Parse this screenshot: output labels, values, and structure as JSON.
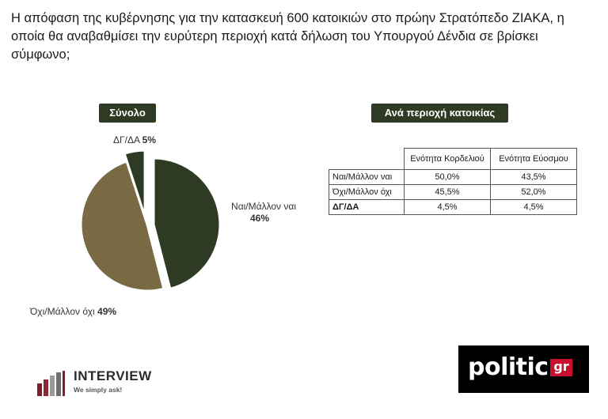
{
  "title": "Η απόφαση της κυβέρνησης για την κατασκευή 600 κατοικιών στο πρώην Στρατόπεδο ΖΙΑΚΑ, η οποία θα αναβαθμίσει την ευρύτερη περιοχή κατά δήλωση του Υπουργού Δένδια σε βρίσκει σύμφωνο;",
  "panels": {
    "total_label": "Σύνολο",
    "region_label": "Ανά περιοχή κατοικίας"
  },
  "pie_labels": {
    "dk": {
      "name": "ΔΓ/ΔΑ",
      "pct": "5%"
    },
    "yes": {
      "name": "Ναι/Μάλλον ναι",
      "pct": "46%"
    },
    "no": {
      "name": "Όχι/Μάλλον όχι",
      "pct": "49%"
    }
  },
  "chart_data": [
    {
      "type": "pie",
      "title": "Σύνολο",
      "categories": [
        "Ναι/Μάλλον ναι",
        "Όχι/Μάλλον όχι",
        "ΔΓ/ΔΑ"
      ],
      "values": [
        46,
        49,
        5
      ],
      "colors": [
        "#2f3a22",
        "#7a6a44",
        "#2f3a22"
      ]
    },
    {
      "type": "table",
      "title": "Ανά περιοχή κατοικίας",
      "columns": [
        "Ενότητα Κορδελιού",
        "Ενότητα Εύοσμου"
      ],
      "rows": [
        {
          "label": "Ναι/Μάλλον ναι",
          "values": [
            "50,0%",
            "43,5%"
          ]
        },
        {
          "label": "Όχι/Μάλλον όχι",
          "values": [
            "45,5%",
            "52,0%"
          ]
        },
        {
          "label": "ΔΓ/ΔΑ",
          "values": [
            "4,5%",
            "4,5%"
          ]
        }
      ]
    }
  ],
  "logos": {
    "interview_name": "INTERVIEW",
    "interview_tagline": "We simply ask!",
    "politic_name": "politic",
    "politic_suffix": "gr"
  }
}
